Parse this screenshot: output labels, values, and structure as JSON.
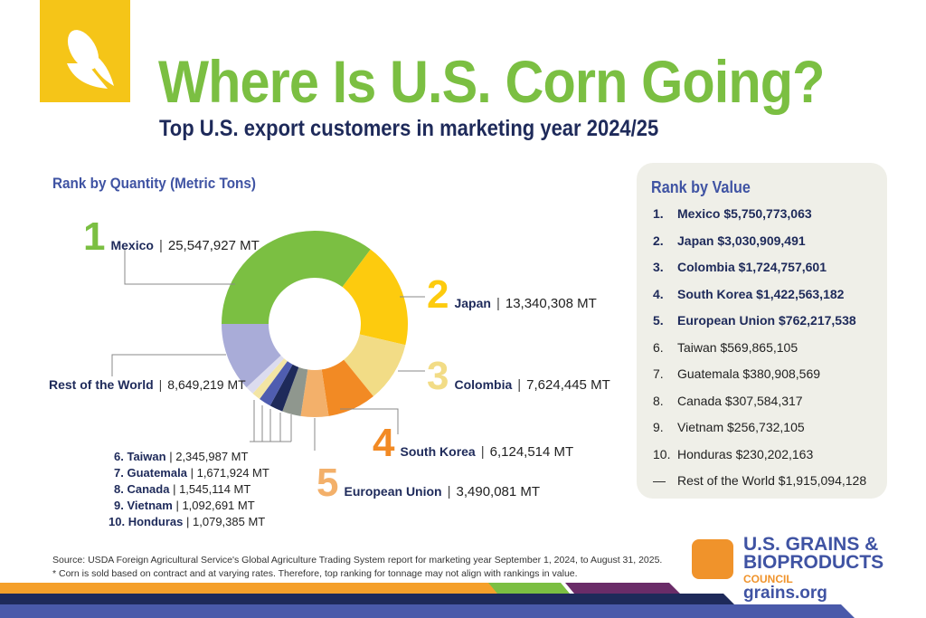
{
  "header": {
    "title": "Where Is U.S. Corn Going?",
    "subtitle": "Top U.S. export customers in marketing year 2024/25"
  },
  "chart_data": [
    {
      "type": "pie",
      "title": "Rank by Quantity (Metric Tons)",
      "unit": "MT",
      "slices": [
        {
          "rank": "1",
          "label": "Mexico",
          "value": 25547927,
          "text": "25,547,927 MT",
          "color": "#7bbf42"
        },
        {
          "rank": "2",
          "label": "Japan",
          "value": 13340308,
          "text": "13,340,308 MT",
          "color": "#fdcb0e"
        },
        {
          "rank": "3",
          "label": "Colombia",
          "value": 7624445,
          "text": "7,624,445 MT",
          "color": "#f2dc86"
        },
        {
          "rank": "4",
          "label": "South Korea",
          "value": 6124514,
          "text": "6,124,514 MT",
          "color": "#f28a24"
        },
        {
          "rank": "5",
          "label": "European Union",
          "value": 3490081,
          "text": "3,490,081 MT",
          "color": "#f3b06a"
        },
        {
          "rank": "6.",
          "label": "Taiwan",
          "value": 2345987,
          "text": "2,345,987 MT",
          "color": "#8f978e"
        },
        {
          "rank": "7.",
          "label": "Guatemala",
          "value": 1671924,
          "text": "1,671,924 MT",
          "color": "#1e2a5a"
        },
        {
          "rank": "8.",
          "label": "Canada",
          "value": 1545114,
          "text": "1,545,114 MT",
          "color": "#4f5db0"
        },
        {
          "rank": "9.",
          "label": "Vietnam",
          "value": 1092691,
          "text": "1,092,691 MT",
          "color": "#f3e5a4"
        },
        {
          "rank": "10.",
          "label": "Honduras",
          "value": 1079385,
          "text": "1,079,385 MT",
          "color": "#dcdcef"
        },
        {
          "rank": "",
          "label": "Rest of the World",
          "value": 8649219,
          "text": "8,649,219 MT",
          "color": "#a9acd8"
        }
      ]
    },
    {
      "type": "table",
      "title": "Rank by Value",
      "rows": [
        {
          "rank": "1.",
          "text": "Mexico $5,750,773,063"
        },
        {
          "rank": "2.",
          "text": "Japan $3,030,909,491"
        },
        {
          "rank": "3.",
          "text": "Colombia $1,724,757,601"
        },
        {
          "rank": "4.",
          "text": "South Korea $1,422,563,182"
        },
        {
          "rank": "5.",
          "text": "European Union $762,217,538"
        },
        {
          "rank": "6.",
          "text": "Taiwan $569,865,105"
        },
        {
          "rank": "7.",
          "text": "Guatemala $380,908,569"
        },
        {
          "rank": "8.",
          "text": "Canada $307,584,317"
        },
        {
          "rank": "9.",
          "text": "Vietnam $256,732,105"
        },
        {
          "rank": "10.",
          "text": "Honduras $230,202,163"
        },
        {
          "rank": "—",
          "text": "Rest of the World $1,915,094,128"
        }
      ]
    }
  ],
  "footer": {
    "source": "Source: USDA Foreign Agricultural Service's Global Agriculture Trading System report for marketing year September 1, 2024, to August 31, 2025.",
    "note": "* Corn is sold based on contract and at varying rates. Therefore, top ranking for tonnage may not align with rankings in value.",
    "org_line1": "U.S. GRAINS &",
    "org_line2": "BIOPRODUCTS",
    "org_line3": "COUNCIL",
    "website": "grains.org"
  },
  "sep": "|"
}
